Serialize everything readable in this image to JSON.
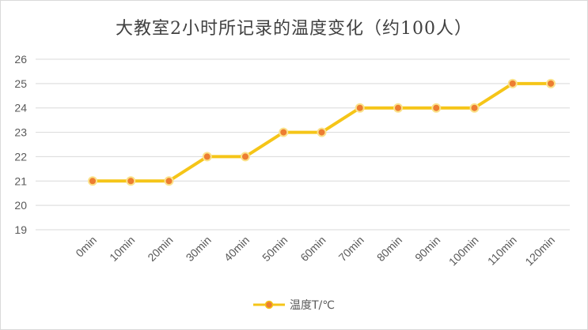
{
  "chart_data": {
    "type": "line",
    "title": "大教室2小时所记录的温度变化（约100人）",
    "categories": [
      "0min",
      "10min",
      "20min",
      "30min",
      "40min",
      "50min",
      "60min",
      "70min",
      "80min",
      "90min",
      "100min",
      "110min",
      "120min"
    ],
    "series": [
      {
        "name": "温度T/℃",
        "values": [
          21,
          21,
          21,
          22,
          22,
          23,
          23,
          24,
          24,
          24,
          24,
          25,
          25
        ]
      }
    ],
    "ylim": [
      19,
      26
    ],
    "yticks": [
      "19",
      "20",
      "21",
      "22",
      "23",
      "24",
      "25",
      "26"
    ],
    "grid": true,
    "legend_position": "bottom",
    "colors": {
      "line": "#f5c518",
      "marker": "#ed7d31",
      "grid": "#d9d9d9"
    }
  }
}
